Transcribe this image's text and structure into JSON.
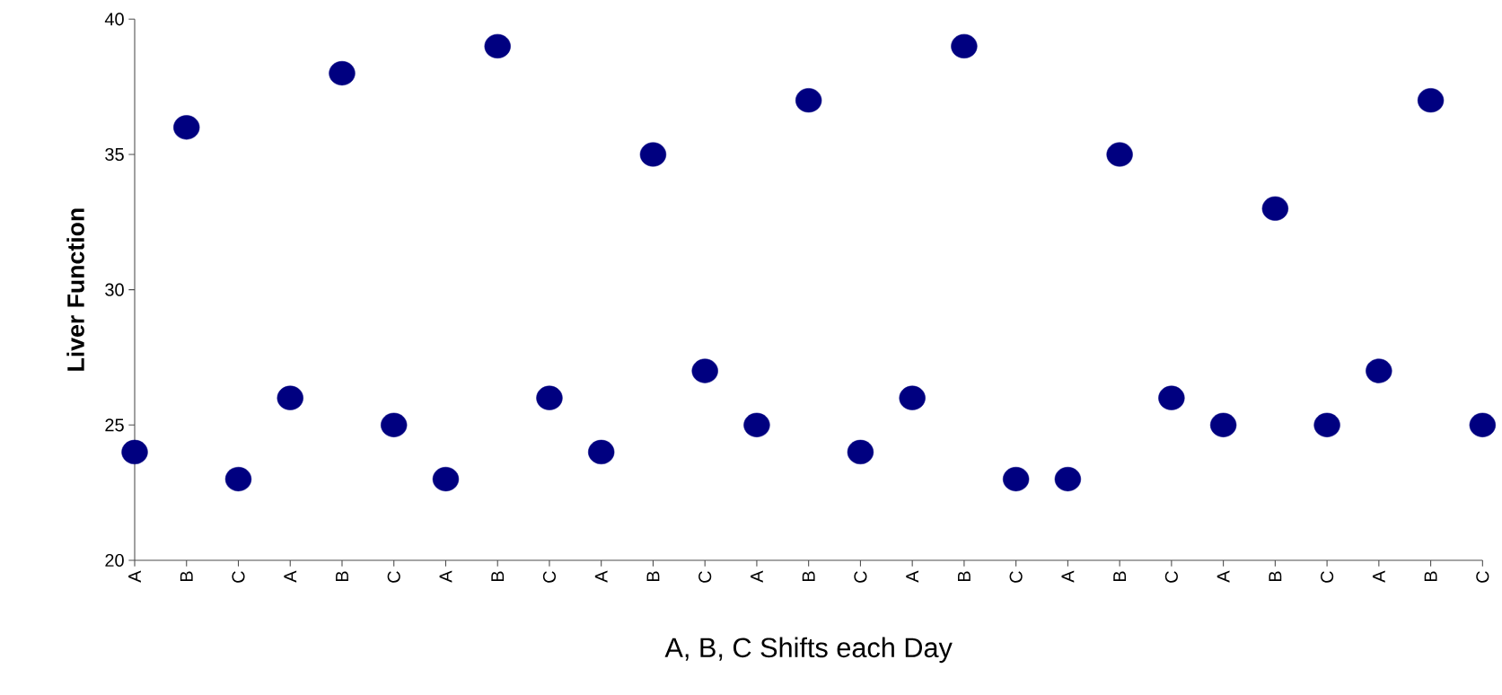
{
  "chart_data": {
    "type": "scatter",
    "xlabel": "A, B, C Shifts each Day",
    "ylabel": "Liver Function",
    "categories": [
      "A",
      "B",
      "C",
      "A",
      "B",
      "C",
      "A",
      "B",
      "C",
      "A",
      "B",
      "C",
      "A",
      "B",
      "C",
      "A",
      "B",
      "C",
      "A",
      "B",
      "C",
      "A",
      "B",
      "C",
      "A",
      "B",
      "C"
    ],
    "values": [
      24,
      36,
      23,
      26,
      38,
      25,
      23,
      39,
      26,
      24,
      35,
      27,
      25,
      37,
      24,
      26,
      39,
      23,
      23,
      35,
      26,
      25,
      33,
      25,
      27,
      37,
      25
    ],
    "color": "#000080",
    "marker": "circle",
    "ylim": [
      20,
      40
    ],
    "yticks": [
      20,
      25,
      30,
      35,
      40
    ]
  }
}
